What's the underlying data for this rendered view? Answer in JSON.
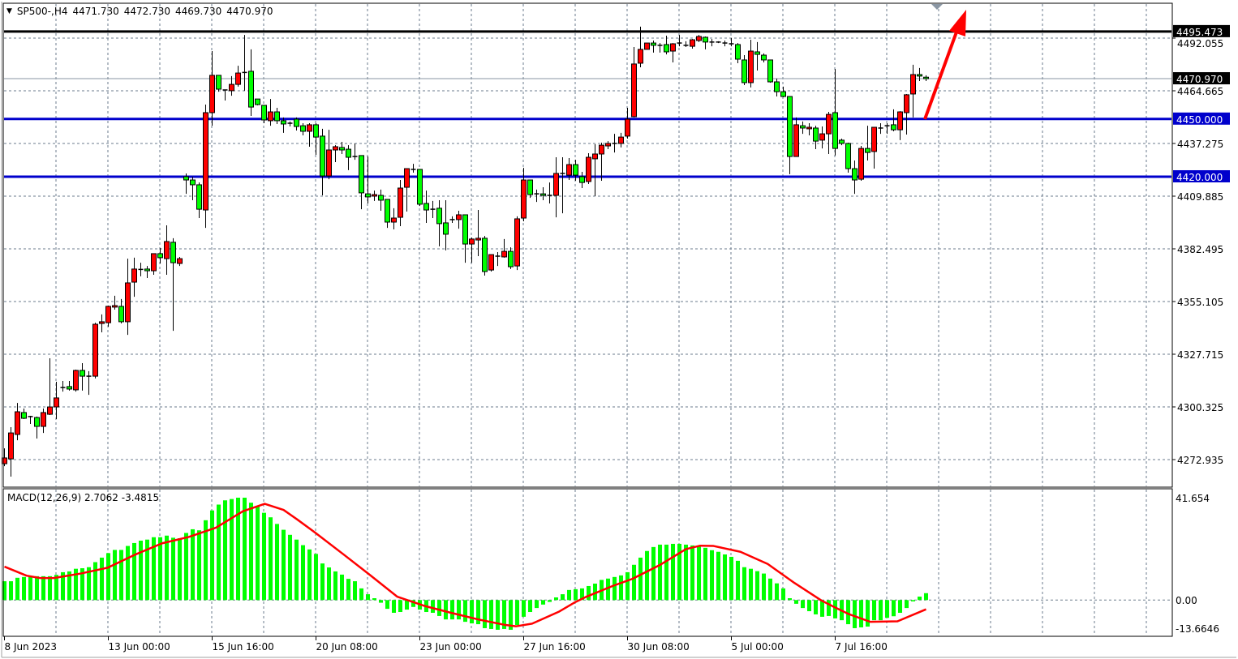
{
  "header": {
    "symbol": "SP500-,H4",
    "open": "4471.730",
    "high": "4472.730",
    "low": "4469.730",
    "close": "4470.970",
    "menu_icon": "triangle-down-icon"
  },
  "colors": {
    "bull": "#ff0000",
    "bear": "#00ff00",
    "wick": "#000000",
    "support_line": "#0000cc",
    "resistance_line": "#000000",
    "grid": "#6b7b8c",
    "histogram": "#00ff00",
    "signal": "#ff0000",
    "arrow": "#ff0000"
  },
  "price_axis": {
    "ticks": [
      4272.935,
      4300.325,
      4327.715,
      4355.105,
      4382.495,
      4409.885,
      4437.275,
      4464.665,
      4492.055
    ],
    "tick_labels": [
      "4272.935",
      "4300.325",
      "4327.715",
      "4355.105",
      "4382.495",
      "4409.885",
      "4437.275",
      "4464.665",
      "4492.055"
    ],
    "current_price": 4470.97,
    "current_price_label": "4470.970"
  },
  "horizontal_lines": [
    {
      "price": 4495.473,
      "label": "4495.473",
      "color": "#000000"
    },
    {
      "price": 4450.0,
      "label": "4450.000",
      "color": "#0000cc"
    },
    {
      "price": 4420.0,
      "label": "4420.000",
      "color": "#0000cc"
    }
  ],
  "time_axis": {
    "labels": [
      {
        "bar": 0,
        "text": "8 Jun 2023"
      },
      {
        "bar": 16,
        "text": "13 Jun 00:00"
      },
      {
        "bar": 32,
        "text": "15 Jun 16:00"
      },
      {
        "bar": 48,
        "text": "20 Jun 08:00"
      },
      {
        "bar": 64,
        "text": "23 Jun 00:00"
      },
      {
        "bar": 80,
        "text": "27 Jun 16:00"
      },
      {
        "bar": 96,
        "text": "30 Jun 08:00"
      },
      {
        "bar": 112,
        "text": "5 Jul 00:00"
      },
      {
        "bar": 128,
        "text": "7 Jul 16:00"
      }
    ]
  },
  "candles_ohlc": [
    [
      4270.8,
      4278.8,
      4269.5,
      4273.8
    ],
    [
      4273.3,
      4289.8,
      4264.1,
      4286.8
    ],
    [
      4286.0,
      4302.4,
      4283.0,
      4297.8
    ],
    [
      4297.4,
      4299.5,
      4294.0,
      4294.4
    ],
    [
      4295.3,
      4295.7,
      4291.5,
      4295.3
    ],
    [
      4294.8,
      4295.3,
      4283.9,
      4290.2
    ],
    [
      4290.2,
      4299.5,
      4286.8,
      4297.4
    ],
    [
      4296.5,
      4325.6,
      4296.1,
      4300.3
    ],
    [
      4300.3,
      4313.4,
      4294.0,
      4305.0
    ],
    [
      4310.4,
      4313.8,
      4308.3,
      4310.4
    ],
    [
      4310.9,
      4313.8,
      4308.8,
      4309.6
    ],
    [
      4309.2,
      4319.7,
      4308.3,
      4319.3
    ],
    [
      4319.3,
      4323.1,
      4308.8,
      4316.3
    ],
    [
      4316.3,
      4318.9,
      4306.6,
      4316.3
    ],
    [
      4316.3,
      4344.1,
      4315.1,
      4343.3
    ],
    [
      4343.7,
      4348.4,
      4339.1,
      4344.6
    ],
    [
      4344.1,
      4353.0,
      4342.0,
      4352.6
    ],
    [
      4352.2,
      4358.1,
      4350.9,
      4353.0
    ],
    [
      4352.6,
      4356.4,
      4343.7,
      4344.6
    ],
    [
      4344.6,
      4377.4,
      4337.8,
      4364.8
    ],
    [
      4365.2,
      4377.9,
      4357.6,
      4372.0
    ],
    [
      4371.8,
      4375.3,
      4368.2,
      4371.8
    ],
    [
      4372.0,
      4373.6,
      4367.3,
      4371.1
    ],
    [
      4371.1,
      4380.0,
      4369.0,
      4380.0
    ],
    [
      4380.0,
      4382.9,
      4374.9,
      4377.9
    ],
    [
      4377.4,
      4394.7,
      4369.0,
      4386.3
    ],
    [
      4385.9,
      4388.0,
      4339.9,
      4375.3
    ],
    [
      4374.9,
      4378.3,
      4373.6,
      4377.4
    ],
    [
      4420.0,
      4421.7,
      4411.1,
      4418.3
    ],
    [
      4418.3,
      4420.0,
      4407.8,
      4415.8
    ],
    [
      4415.8,
      4417.0,
      4398.5,
      4403.1
    ],
    [
      4402.7,
      4457.5,
      4393.4,
      4453.3
    ],
    [
      4453.3,
      4485.3,
      4446.5,
      4472.7
    ],
    [
      4472.7,
      4472.7,
      4464.2,
      4465.5
    ],
    [
      4465.1,
      4465.1,
      4459.6,
      4465.1
    ],
    [
      4464.7,
      4472.3,
      4462.1,
      4468.0
    ],
    [
      4468.0,
      4477.7,
      4466.8,
      4473.9
    ],
    [
      4474.2,
      4493.7,
      4464.7,
      4474.2
    ],
    [
      4474.8,
      4486.2,
      4451.6,
      4456.2
    ],
    [
      4460.4,
      4460.4,
      4457.1,
      4457.5
    ],
    [
      4457.1,
      4457.1,
      4447.8,
      4449.5
    ],
    [
      4449.1,
      4460.4,
      4446.5,
      4453.7
    ],
    [
      4453.7,
      4455.8,
      4447.4,
      4449.1
    ],
    [
      4449.1,
      4450.8,
      4442.8,
      4447.4
    ],
    [
      4447.8,
      4448.7,
      4446.1,
      4447.8
    ],
    [
      4449.9,
      4450.8,
      4444.0,
      4446.1
    ],
    [
      4446.5,
      4447.8,
      4441.5,
      4443.6
    ],
    [
      4443.6,
      4447.8,
      4435.6,
      4447.0
    ],
    [
      4447.0,
      4447.8,
      4431.4,
      4440.6
    ],
    [
      4441.1,
      4444.9,
      4410.3,
      4420.4
    ],
    [
      4420.4,
      4444.4,
      4418.7,
      4433.9
    ],
    [
      4433.9,
      4436.4,
      4427.6,
      4435.6
    ],
    [
      4435.2,
      4438.1,
      4431.8,
      4433.9
    ],
    [
      4434.3,
      4436.4,
      4423.4,
      4430.1
    ],
    [
      4430.5,
      4437.3,
      4428.8,
      4430.5
    ],
    [
      4431.0,
      4431.0,
      4403.1,
      4411.6
    ],
    [
      4411.1,
      4430.5,
      4406.1,
      4409.5
    ],
    [
      4409.9,
      4412.8,
      4407.4,
      4410.7
    ],
    [
      4410.3,
      4413.3,
      4402.3,
      4407.8
    ],
    [
      4408.2,
      4408.2,
      4393.4,
      4396.4
    ],
    [
      4396.4,
      4403.6,
      4392.6,
      4398.5
    ],
    [
      4398.9,
      4418.3,
      4394.3,
      4414.1
    ],
    [
      4414.5,
      4424.2,
      4401.9,
      4424.2
    ],
    [
      4423.8,
      4426.7,
      4422.1,
      4423.8
    ],
    [
      4423.8,
      4423.8,
      4404.8,
      4405.7
    ],
    [
      4406.1,
      4412.8,
      4396.0,
      4402.7
    ],
    [
      4403.1,
      4407.4,
      4398.5,
      4403.1
    ],
    [
      4403.6,
      4407.8,
      4383.8,
      4395.6
    ],
    [
      4396.0,
      4407.8,
      4381.7,
      4390.1
    ],
    [
      4397.7,
      4399.4,
      4396.0,
      4397.7
    ],
    [
      4397.7,
      4402.3,
      4393.0,
      4400.2
    ],
    [
      4400.2,
      4400.2,
      4375.3,
      4385.0
    ],
    [
      4385.0,
      4388.4,
      4375.3,
      4387.6
    ],
    [
      4387.1,
      4402.7,
      4378.7,
      4388.0
    ],
    [
      4388.0,
      4389.2,
      4368.6,
      4370.7
    ],
    [
      4371.5,
      4379.5,
      4370.7,
      4379.5
    ],
    [
      4378.7,
      4380.8,
      4373.6,
      4378.7
    ],
    [
      4378.3,
      4387.6,
      4377.9,
      4381.2
    ],
    [
      4381.2,
      4383.3,
      4372.0,
      4373.2
    ],
    [
      4373.6,
      4399.4,
      4371.5,
      4398.1
    ],
    [
      4398.5,
      4424.6,
      4396.8,
      4418.3
    ],
    [
      4418.3,
      4418.3,
      4409.0,
      4410.7
    ],
    [
      4411.1,
      4413.3,
      4406.9,
      4411.1
    ],
    [
      4411.1,
      4414.5,
      4407.8,
      4410.3
    ],
    [
      4410.3,
      4417.0,
      4406.1,
      4410.3
    ],
    [
      4410.3,
      4430.1,
      4398.9,
      4421.7
    ],
    [
      4421.7,
      4430.1,
      4401.0,
      4421.7
    ],
    [
      4420.8,
      4429.7,
      4418.3,
      4426.3
    ],
    [
      4426.3,
      4428.8,
      4417.9,
      4420.8
    ],
    [
      4420.0,
      4422.5,
      4414.1,
      4417.0
    ],
    [
      4417.5,
      4432.2,
      4416.2,
      4430.1
    ],
    [
      4429.3,
      4436.9,
      4409.9,
      4431.8
    ],
    [
      4431.8,
      4437.7,
      4417.9,
      4436.4
    ],
    [
      4436.0,
      4438.5,
      4434.3,
      4437.3
    ],
    [
      4437.3,
      4442.3,
      4432.6,
      4437.3
    ],
    [
      4437.3,
      4442.8,
      4435.2,
      4440.6
    ],
    [
      4441.1,
      4455.8,
      4439.8,
      4449.9
    ],
    [
      4451.2,
      4487.4,
      4450.8,
      4478.6
    ],
    [
      4479.0,
      4498.0,
      4476.9,
      4486.2
    ],
    [
      4486.2,
      4489.5,
      4486.2,
      4489.5
    ],
    [
      4489.5,
      4490.8,
      4484.5,
      4488.3
    ],
    [
      4488.3,
      4489.5,
      4484.5,
      4488.3
    ],
    [
      4488.7,
      4493.3,
      4483.6,
      4484.9
    ],
    [
      4485.3,
      4489.5,
      4479.4,
      4489.1
    ],
    [
      4489.5,
      4493.7,
      4487.8,
      4489.5
    ],
    [
      4488.3,
      4490.4,
      4487.4,
      4488.3
    ],
    [
      4487.8,
      4491.6,
      4486.6,
      4491.2
    ],
    [
      4490.8,
      4493.7,
      4490.0,
      4492.9
    ],
    [
      4492.5,
      4492.9,
      4486.2,
      4490.0
    ],
    [
      4490.0,
      4491.6,
      4487.8,
      4490.0
    ],
    [
      4490.0,
      4490.4,
      4489.5,
      4490.0
    ],
    [
      4489.5,
      4490.8,
      4487.8,
      4489.5
    ],
    [
      4489.1,
      4492.1,
      4487.8,
      4489.1
    ],
    [
      4488.7,
      4489.5,
      4479.0,
      4481.1
    ],
    [
      4480.7,
      4483.2,
      4467.6,
      4468.9
    ],
    [
      4468.9,
      4491.2,
      4466.4,
      4485.3
    ],
    [
      4484.9,
      4490.0,
      4475.2,
      4483.6
    ],
    [
      4483.2,
      4484.1,
      4479.4,
      4480.7
    ],
    [
      4480.7,
      4480.7,
      4468.9,
      4469.3
    ],
    [
      4469.3,
      4471.0,
      4461.7,
      4464.2
    ],
    [
      4464.2,
      4466.8,
      4461.3,
      4461.7
    ],
    [
      4461.7,
      4461.7,
      4421.3,
      4430.5
    ],
    [
      4430.5,
      4450.8,
      4430.5,
      4447.0
    ],
    [
      4446.5,
      4448.7,
      4442.3,
      4445.3
    ],
    [
      4444.9,
      4447.8,
      4441.5,
      4445.7
    ],
    [
      4445.3,
      4446.5,
      4434.3,
      4438.5
    ],
    [
      4439.0,
      4446.1,
      4434.7,
      4442.3
    ],
    [
      4442.3,
      4453.7,
      4431.8,
      4452.4
    ],
    [
      4453.3,
      4476.0,
      4431.0,
      4434.7
    ],
    [
      4439.0,
      4439.8,
      4436.4,
      4437.3
    ],
    [
      4437.3,
      4437.7,
      4422.1,
      4424.2
    ],
    [
      4424.2,
      4428.4,
      4411.1,
      4418.3
    ],
    [
      4418.7,
      4436.0,
      4417.9,
      4434.7
    ],
    [
      4434.7,
      4446.5,
      4428.4,
      4432.6
    ],
    [
      4433.1,
      4445.7,
      4424.2,
      4445.7
    ],
    [
      4445.3,
      4447.8,
      4442.3,
      4445.3
    ],
    [
      4446.5,
      4447.8,
      4442.3,
      4446.5
    ],
    [
      4447.0,
      4455.0,
      4443.6,
      4444.4
    ],
    [
      4444.4,
      4454.1,
      4439.0,
      4453.7
    ],
    [
      4453.3,
      4463.0,
      4441.9,
      4462.6
    ],
    [
      4463.0,
      4478.2,
      4450.8,
      4473.1
    ],
    [
      4473.1,
      4476.5,
      4469.7,
      4472.3
    ],
    [
      4471.73,
      4472.73,
      4469.73,
      4470.97
    ]
  ],
  "macd": {
    "label": "MACD(12,26,9) 2.7062 -3.4815",
    "axis_labels": [
      "41.654",
      "0.00",
      "-13.6646"
    ],
    "range": [
      -13.6646,
      41.654
    ],
    "histogram": [
      7.1,
      7.1,
      8.4,
      8.7,
      9.0,
      9.0,
      9.0,
      9.0,
      9.5,
      10.5,
      10.8,
      11.8,
      12.0,
      12.4,
      14.3,
      16.0,
      17.7,
      18.9,
      18.9,
      20.4,
      21.5,
      22.4,
      22.8,
      23.7,
      23.7,
      24.3,
      23.5,
      23.3,
      25.3,
      26.7,
      26.3,
      30.1,
      33.8,
      36.0,
      37.6,
      38.1,
      38.6,
      38.6,
      36.7,
      35.3,
      32.9,
      31.2,
      28.7,
      26.5,
      24.6,
      22.8,
      20.7,
      19.1,
      17.4,
      13.8,
      12.3,
      10.8,
      9.6,
      8.0,
      7.1,
      4.4,
      2.2,
      0.7,
      -1.0,
      -3.3,
      -4.8,
      -4.5,
      -3.6,
      -2.6,
      -3.6,
      -4.5,
      -4.8,
      -6.0,
      -7.3,
      -7.3,
      -7.3,
      -8.2,
      -8.8,
      -9.1,
      -10.6,
      -10.9,
      -11.2,
      -10.9,
      -11.2,
      -9.4,
      -6.3,
      -4.5,
      -3.0,
      -1.7,
      -0.7,
      1.0,
      2.2,
      3.8,
      4.1,
      4.4,
      5.3,
      6.2,
      7.6,
      8.1,
      8.7,
      9.3,
      10.5,
      13.3,
      16.0,
      18.5,
      20.0,
      20.9,
      20.9,
      21.2,
      21.2,
      20.9,
      20.6,
      20.3,
      19.7,
      18.8,
      18.2,
      17.2,
      16.3,
      14.8,
      12.4,
      11.8,
      10.9,
      10.0,
      8.1,
      6.3,
      4.4,
      0.7,
      -1.4,
      -3.0,
      -4.2,
      -5.4,
      -6.3,
      -6.0,
      -6.9,
      -7.6,
      -9.1,
      -10.6,
      -10.3,
      -10.0,
      -7.6,
      -7.6,
      -6.7,
      -6.1,
      -4.8,
      -3.0,
      -0.5,
      1.3,
      2.6
    ],
    "signal": [
      [
        0,
        12.6
      ],
      [
        3.4,
        9.2
      ],
      [
        5.5,
        8.3
      ],
      [
        7.6,
        8.3
      ],
      [
        11.75,
        10.0
      ],
      [
        15.9,
        12.2
      ],
      [
        20.1,
        17.1
      ],
      [
        24.3,
        21.4
      ],
      [
        28.4,
        23.8
      ],
      [
        32.6,
        27.3
      ],
      [
        36.75,
        33.5
      ],
      [
        40.1,
        36.3
      ],
      [
        43,
        34.0
      ],
      [
        45.1,
        30.4
      ],
      [
        48,
        25.2
      ],
      [
        52.2,
        17.3
      ],
      [
        56.3,
        9.5
      ],
      [
        60.5,
        1.3
      ],
      [
        64.7,
        -2.2
      ],
      [
        68.8,
        -4.8
      ],
      [
        73,
        -7.3
      ],
      [
        77.2,
        -9.4
      ],
      [
        78.8,
        -9.9
      ],
      [
        81.3,
        -8.9
      ],
      [
        85.5,
        -4.3
      ],
      [
        88,
        -0.7
      ],
      [
        89.7,
        1.3
      ],
      [
        93.8,
        5.4
      ],
      [
        96.75,
        8.0
      ],
      [
        100.9,
        13.1
      ],
      [
        105,
        19.2
      ],
      [
        107.2,
        20.5
      ],
      [
        109.25,
        20.4
      ],
      [
        113.4,
        18.2
      ],
      [
        117.6,
        13.6
      ],
      [
        121.75,
        6.4
      ],
      [
        125.9,
        -0.2
      ],
      [
        128,
        -2.8
      ],
      [
        130.1,
        -5.3
      ],
      [
        133.4,
        -8.2
      ],
      [
        137.6,
        -8.0
      ],
      [
        142,
        -3.4815
      ]
    ]
  }
}
